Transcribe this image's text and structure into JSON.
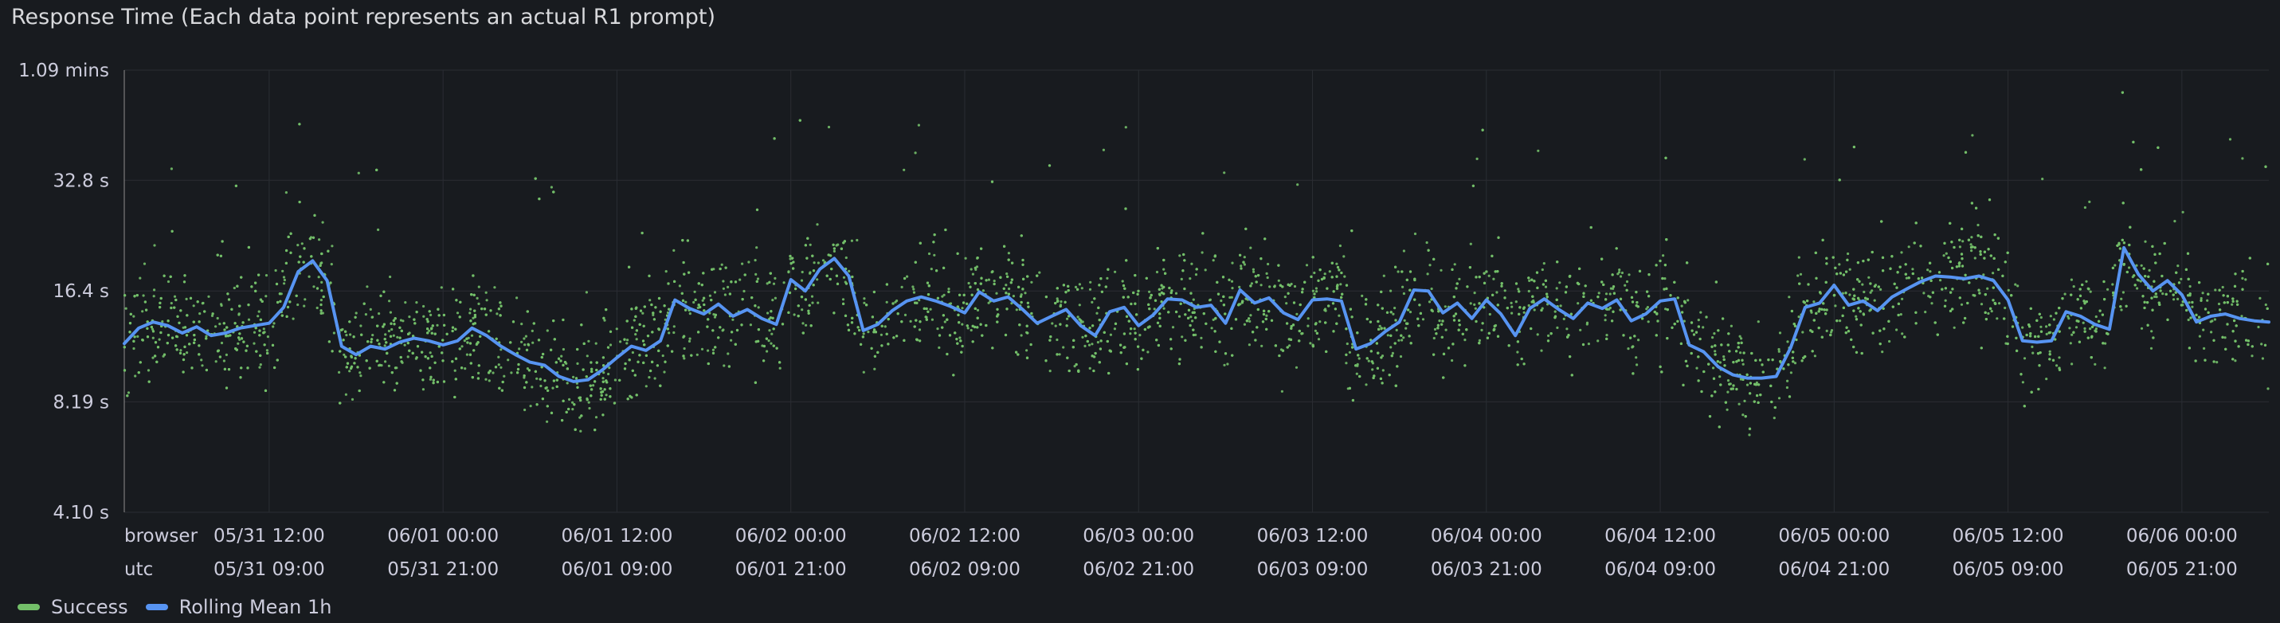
{
  "panel": {
    "title": "Response Time (Each data point represents an actual R1 prompt)"
  },
  "legend": {
    "items": [
      {
        "label": "Success",
        "color": "#73bf69"
      },
      {
        "label": "Rolling Mean 1h",
        "color": "#5794f2"
      }
    ]
  },
  "chart_data": {
    "type": "scatter",
    "title": "Response Time (Each data point represents an actual R1 prompt)",
    "y_scale": "log",
    "y_unit": "seconds",
    "ylim": [
      4.1,
      65.4
    ],
    "y_ticks": [
      {
        "value": 65.4,
        "label": "1.09 mins"
      },
      {
        "value": 32.8,
        "label": "32.8 s"
      },
      {
        "value": 16.4,
        "label": "16.4 s"
      },
      {
        "value": 8.19,
        "label": "8.19 s"
      },
      {
        "value": 4.1,
        "label": "4.10 s"
      }
    ],
    "x_unit": "hours since 05/31 02:00 browser time",
    "xlim": [
      0,
      148
    ],
    "x_timezone_rows": [
      {
        "label": "browser",
        "ticks": [
          "05/31 12:00",
          "06/01 00:00",
          "06/01 12:00",
          "06/02 00:00",
          "06/02 12:00",
          "06/03 00:00",
          "06/03 12:00",
          "06/04 00:00",
          "06/04 12:00",
          "06/05 00:00",
          "06/05 12:00",
          "06/06 00:00"
        ]
      },
      {
        "label": "utc",
        "ticks": [
          "05/31 09:00",
          "05/31 21:00",
          "06/01 09:00",
          "06/01 21:00",
          "06/02 09:00",
          "06/02 21:00",
          "06/03 09:00",
          "06/03 21:00",
          "06/04 09:00",
          "06/04 21:00",
          "06/05 09:00",
          "06/05 21:00"
        ]
      }
    ],
    "x_tick_hours": [
      10,
      22,
      34,
      46,
      58,
      70,
      82,
      94,
      106,
      118,
      130,
      142
    ],
    "grid": true,
    "legend_position": "bottom-left",
    "series": [
      {
        "name": "Rolling Mean 1h",
        "color": "#5794f2",
        "kind": "line",
        "x": [
          0,
          1,
          2,
          3,
          4,
          5,
          6,
          7,
          8,
          9,
          10,
          11,
          12,
          13,
          14,
          15,
          16,
          17,
          18,
          19,
          20,
          21,
          22,
          23,
          24,
          25,
          26,
          27,
          28,
          29,
          30,
          31,
          32,
          33,
          34,
          35,
          36,
          37,
          38,
          39,
          40,
          41,
          42,
          43,
          44,
          45,
          46,
          47,
          48,
          49,
          50,
          51,
          52,
          53,
          54,
          55,
          56,
          57,
          58,
          59,
          60,
          61,
          62,
          63,
          64,
          65,
          66,
          67,
          68,
          69,
          70,
          71,
          72,
          73,
          74,
          75,
          76,
          77,
          78,
          79,
          80,
          81,
          82,
          83,
          84,
          85,
          86,
          87,
          88,
          89,
          90,
          91,
          92,
          93,
          94,
          95,
          96,
          97,
          98,
          99,
          100,
          101,
          102,
          103,
          104,
          105,
          106,
          107,
          108,
          109,
          110,
          111,
          112,
          113,
          114,
          115,
          116,
          117,
          118,
          119,
          120,
          121,
          122,
          123,
          124,
          125,
          126,
          127,
          128,
          129,
          130,
          131,
          132,
          133,
          134,
          135,
          136,
          137,
          138,
          139,
          140,
          141,
          142,
          143,
          144,
          145,
          146,
          147,
          148
        ],
        "y": [
          11.8,
          13.0,
          13.5,
          13.2,
          12.6,
          13.1,
          12.4,
          12.6,
          13.0,
          13.2,
          13.4,
          14.8,
          18.5,
          19.8,
          17.5,
          11.6,
          11.0,
          11.6,
          11.4,
          11.9,
          12.2,
          12.0,
          11.7,
          12.0,
          13.0,
          12.4,
          11.6,
          11.0,
          10.5,
          10.3,
          9.6,
          9.3,
          9.4,
          10.0,
          10.8,
          11.6,
          11.3,
          12.0,
          15.5,
          14.7,
          14.2,
          15.1,
          14.0,
          14.6,
          13.8,
          13.3,
          17.6,
          16.4,
          18.8,
          20.1,
          18.0,
          12.8,
          13.3,
          14.5,
          15.4,
          15.8,
          15.4,
          14.9,
          14.3,
          16.3,
          15.4,
          15.8,
          14.6,
          13.4,
          14.0,
          14.6,
          13.2,
          12.4,
          14.4,
          14.8,
          13.2,
          14.1,
          15.6,
          15.5,
          14.8,
          15.0,
          13.4,
          16.5,
          15.2,
          15.7,
          14.3,
          13.7,
          15.5,
          15.6,
          15.4,
          11.4,
          11.8,
          12.7,
          13.5,
          16.5,
          16.4,
          14.3,
          15.2,
          13.8,
          15.5,
          14.2,
          12.4,
          14.7,
          15.6,
          14.6,
          13.8,
          15.2,
          14.7,
          15.5,
          13.6,
          14.2,
          15.4,
          15.6,
          11.7,
          11.2,
          10.2,
          9.7,
          9.5,
          9.5,
          9.6,
          11.5,
          14.8,
          15.2,
          17.0,
          15.0,
          15.4,
          14.5,
          15.8,
          16.6,
          17.4,
          18.0,
          17.9,
          17.7,
          18.0,
          17.5,
          15.5,
          12.0,
          11.9,
          12.0,
          14.4,
          14.0,
          13.3,
          12.9,
          21.5,
          18.2,
          16.4,
          17.5,
          16.0,
          13.5,
          14.0,
          14.2,
          13.8,
          13.6,
          13.5
        ]
      },
      {
        "name": "Success",
        "color": "#73bf69",
        "kind": "points",
        "note": "dense cloud of individual prompt response times scattered around the rolling mean (approx. ±35%), with outliers up to ~60 s"
      }
    ]
  }
}
